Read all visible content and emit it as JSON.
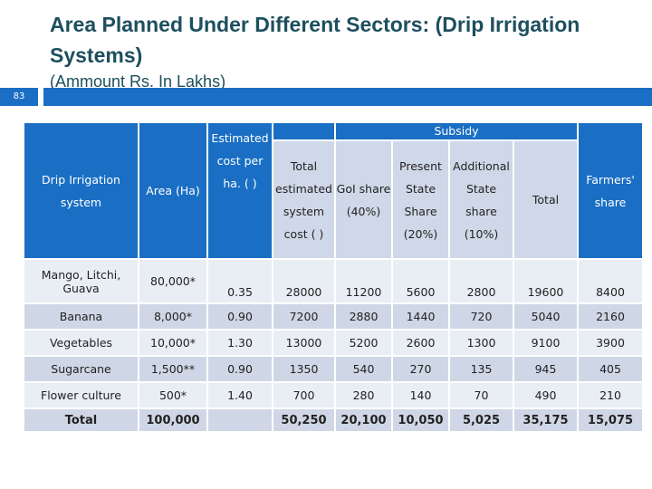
{
  "slide": {
    "title": "Area Planned Under Different Sectors: (Drip Irrigation Systems)",
    "subtitle": "(Ammount Rs. In Lakhs)",
    "slide_number": "83"
  },
  "table": {
    "headers": {
      "system": "Drip Irrigation system",
      "area": "Area (Ha)",
      "estimated_cost": "Estimated cost per ha. ( )",
      "subsidy": "Subsidy",
      "total_estimated": "Total estimated system cost ( )",
      "goi_share": "GoI share (40%)",
      "present_state": "Present State Share (20%)",
      "additional_state": "Additional State share (10%)",
      "total": "Total",
      "farmers_share": "Farmers' share"
    },
    "rows": [
      [
        "Mango, Litchi, Guava",
        "80,000*",
        "0.35",
        "28000",
        "11200",
        "5600",
        "2800",
        "19600",
        "8400"
      ],
      [
        "Banana",
        "8,000*",
        "0.90",
        "7200",
        "2880",
        "1440",
        "720",
        "5040",
        "2160"
      ],
      [
        "Vegetables",
        "10,000*",
        "1.30",
        "13000",
        "5200",
        "2600",
        "1300",
        "9100",
        "3900"
      ],
      [
        "Sugarcane",
        "1,500**",
        "0.90",
        "1350",
        "540",
        "270",
        "135",
        "945",
        "405"
      ],
      [
        "Flower culture",
        "500*",
        "1.40",
        "700",
        "280",
        "140",
        "70",
        "490",
        "210"
      ]
    ],
    "total_row": [
      "Total",
      "100,000",
      "",
      "50,250",
      "20,100",
      "10,050",
      "5,025",
      "35,175",
      "15,075"
    ]
  }
}
